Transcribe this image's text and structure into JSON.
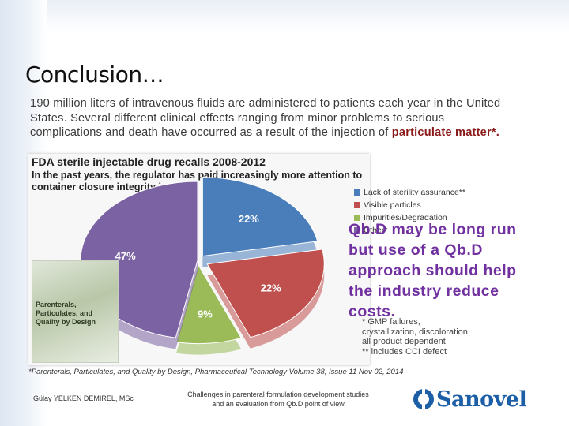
{
  "slide": {
    "title": "Conclusion…",
    "intro_text": "190 million liters of intravenous fluids are administered to patients each year in the United States. Several different clinical effects ranging from minor problems to serious complications and death have occurred as a result of the injection of",
    "intro_emphasis": "particulate matter*."
  },
  "chart_data": {
    "type": "pie",
    "title": "FDA sterile injectable drug recalls 2008-2012",
    "subtitle": "In the past years, the regulator has paid increasingly more attention to container closure integrity issues",
    "labels": [
      "Lack of sterility assurance**",
      "Visible particles",
      "Impurities/Degradation",
      "Other*"
    ],
    "values": [
      22,
      22,
      9,
      47
    ],
    "value_labels": [
      "22%",
      "22%",
      "9%",
      "47%"
    ],
    "colors": [
      "#4a7ebb",
      "#c0504d",
      "#9bbb59",
      "#7b62a3"
    ],
    "legend_position": "right",
    "notes": [
      "* GMP failures, crystallization, discoloration all product dependent",
      "** includes CCI defect"
    ]
  },
  "callout": {
    "text": "Qb.D may be long run but use of a Qb.D approach should help the industry reduce costs."
  },
  "book": {
    "title": "Parenterals, Particulates, and Quality by Design"
  },
  "footer": {
    "footnote": "*Parenterals, Particulates, and Quality by Design, Pharmaceutical Technology Volume 38, Issue 11 Nov 02, 2014",
    "author": "Gülay YELKEN DEMIREL, MSc",
    "talk_title": "Challenges in parenteral formulation development studies and an evaluation from Qb.D point of view",
    "logo_text": "Sanovel"
  }
}
